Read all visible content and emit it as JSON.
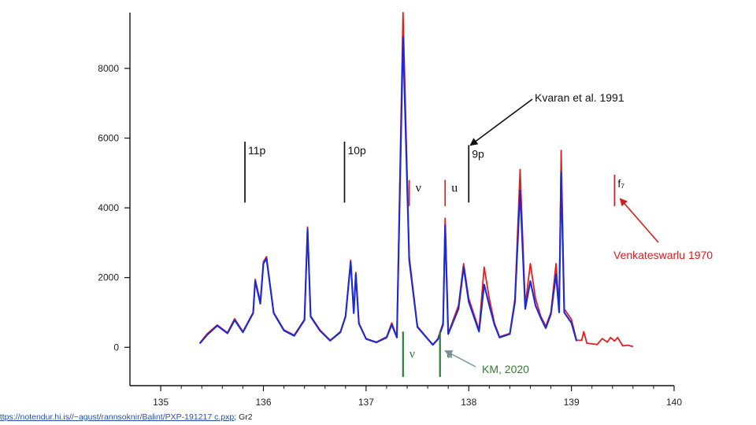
{
  "chart_data": {
    "type": "line",
    "x_axis": {
      "ticks": [
        135,
        136,
        137,
        138,
        139,
        140
      ],
      "range": [
        134.7,
        140.0
      ]
    },
    "y_axis": {
      "ticks": [
        0,
        2000,
        4000,
        6000,
        8000
      ],
      "range": [
        -1100,
        9600
      ]
    },
    "grid": false,
    "series": [
      {
        "color": "#e02020",
        "points": [
          [
            135.38,
            120
          ],
          [
            135.45,
            380
          ],
          [
            135.55,
            640
          ],
          [
            135.65,
            420
          ],
          [
            135.72,
            820
          ],
          [
            135.8,
            450
          ],
          [
            135.9,
            1000
          ],
          [
            135.92,
            1950
          ],
          [
            135.97,
            1300
          ],
          [
            136.0,
            2450
          ],
          [
            136.03,
            2600
          ],
          [
            136.1,
            1000
          ],
          [
            136.2,
            500
          ],
          [
            136.3,
            350
          ],
          [
            136.4,
            800
          ],
          [
            136.43,
            3450
          ],
          [
            136.46,
            900
          ],
          [
            136.55,
            500
          ],
          [
            136.65,
            200
          ],
          [
            136.75,
            450
          ],
          [
            136.8,
            900
          ],
          [
            136.85,
            2500
          ],
          [
            136.88,
            1000
          ],
          [
            136.9,
            2150
          ],
          [
            136.93,
            700
          ],
          [
            137.0,
            250
          ],
          [
            137.1,
            150
          ],
          [
            137.2,
            300
          ],
          [
            137.25,
            700
          ],
          [
            137.3,
            300
          ],
          [
            137.36,
            9600
          ],
          [
            137.42,
            2600
          ],
          [
            137.5,
            600
          ],
          [
            137.6,
            250
          ],
          [
            137.65,
            80
          ],
          [
            137.7,
            250
          ],
          [
            137.75,
            700
          ],
          [
            137.77,
            3700
          ],
          [
            137.8,
            400
          ],
          [
            137.9,
            1200
          ],
          [
            137.95,
            2400
          ],
          [
            138.0,
            1400
          ],
          [
            138.1,
            500
          ],
          [
            138.15,
            2300
          ],
          [
            138.2,
            1400
          ],
          [
            138.25,
            700
          ],
          [
            138.3,
            300
          ],
          [
            138.4,
            400
          ],
          [
            138.45,
            1400
          ],
          [
            138.5,
            5100
          ],
          [
            138.55,
            1200
          ],
          [
            138.6,
            2400
          ],
          [
            138.65,
            1400
          ],
          [
            138.7,
            900
          ],
          [
            138.75,
            600
          ],
          [
            138.8,
            1000
          ],
          [
            138.85,
            2400
          ],
          [
            138.88,
            1100
          ],
          [
            138.9,
            5650
          ],
          [
            138.93,
            1100
          ],
          [
            139.0,
            800
          ],
          [
            139.05,
            200
          ],
          [
            139.1,
            200
          ],
          [
            139.12,
            450
          ],
          [
            139.15,
            120
          ],
          [
            139.25,
            80
          ],
          [
            139.3,
            250
          ],
          [
            139.35,
            150
          ],
          [
            139.38,
            280
          ],
          [
            139.42,
            180
          ],
          [
            139.45,
            280
          ],
          [
            139.5,
            40
          ],
          [
            139.55,
            60
          ],
          [
            139.6,
            20
          ]
        ]
      },
      {
        "color": "#1a2ad4",
        "points": [
          [
            135.38,
            110
          ],
          [
            135.45,
            350
          ],
          [
            135.55,
            620
          ],
          [
            135.65,
            400
          ],
          [
            135.72,
            780
          ],
          [
            135.8,
            430
          ],
          [
            135.9,
            980
          ],
          [
            135.92,
            1900
          ],
          [
            135.97,
            1250
          ],
          [
            136.0,
            2400
          ],
          [
            136.03,
            2550
          ],
          [
            136.1,
            980
          ],
          [
            136.2,
            480
          ],
          [
            136.3,
            330
          ],
          [
            136.4,
            780
          ],
          [
            136.43,
            3400
          ],
          [
            136.46,
            880
          ],
          [
            136.55,
            480
          ],
          [
            136.65,
            190
          ],
          [
            136.75,
            430
          ],
          [
            136.8,
            880
          ],
          [
            136.85,
            2450
          ],
          [
            136.88,
            980
          ],
          [
            136.9,
            2100
          ],
          [
            136.93,
            680
          ],
          [
            137.0,
            240
          ],
          [
            137.1,
            140
          ],
          [
            137.2,
            280
          ],
          [
            137.25,
            650
          ],
          [
            137.3,
            280
          ],
          [
            137.36,
            8900
          ],
          [
            137.42,
            2500
          ],
          [
            137.5,
            580
          ],
          [
            137.6,
            240
          ],
          [
            137.65,
            70
          ],
          [
            137.7,
            230
          ],
          [
            137.75,
            650
          ],
          [
            137.77,
            3500
          ],
          [
            137.8,
            380
          ],
          [
            137.9,
            1100
          ],
          [
            137.95,
            2300
          ],
          [
            138.0,
            1300
          ],
          [
            138.1,
            450
          ],
          [
            138.15,
            1800
          ],
          [
            138.2,
            1200
          ],
          [
            138.25,
            650
          ],
          [
            138.3,
            280
          ],
          [
            138.4,
            380
          ],
          [
            138.45,
            1300
          ],
          [
            138.5,
            4500
          ],
          [
            138.55,
            1100
          ],
          [
            138.6,
            1900
          ],
          [
            138.65,
            1200
          ],
          [
            138.7,
            850
          ],
          [
            138.75,
            550
          ],
          [
            138.8,
            950
          ],
          [
            138.85,
            2100
          ],
          [
            138.88,
            1000
          ],
          [
            138.9,
            5000
          ],
          [
            138.93,
            1000
          ],
          [
            139.0,
            700
          ],
          [
            139.05,
            180
          ]
        ]
      }
    ],
    "markers": [
      {
        "label": "11p",
        "x": 135.82,
        "y_bottom": 4150,
        "y_top": 5900,
        "color": "#111111"
      },
      {
        "label": "10p",
        "x": 136.79,
        "y_bottom": 4150,
        "y_top": 5900,
        "color": "#111111"
      },
      {
        "label": "9p",
        "x": 138.0,
        "y_bottom": 4150,
        "y_top": 5800,
        "color": "#111111"
      },
      {
        "label": "ν",
        "x": 137.42,
        "y_bottom": 4050,
        "y_top": 4800,
        "color": "#d22020"
      },
      {
        "label": "u",
        "x": 137.77,
        "y_bottom": 4050,
        "y_top": 4800,
        "color": "#d22020"
      },
      {
        "label": "f₇",
        "x": 139.42,
        "y_bottom": 4050,
        "y_top": 4950,
        "color": "#d22020"
      },
      {
        "label": "ν",
        "x": 137.36,
        "y_bottom": -850,
        "y_top": 450,
        "color": "#2e7d32"
      },
      {
        "label": "u",
        "x": 137.72,
        "y_bottom": -850,
        "y_top": 450,
        "color": "#2e7d32"
      }
    ],
    "annotations": [
      {
        "text": "Kvaran et al. 1991",
        "color": "#111111"
      },
      {
        "text": "Venkateswarlu 1970",
        "color": "#d22020"
      },
      {
        "text": "KM, 2020",
        "color": "#2e7d32"
      }
    ]
  },
  "source_link": {
    "url": "https://notendur.hi.is//~agust/rannsoknir/Balint/PXP-191217 c.pxp",
    "suffix": "; Gr2"
  }
}
